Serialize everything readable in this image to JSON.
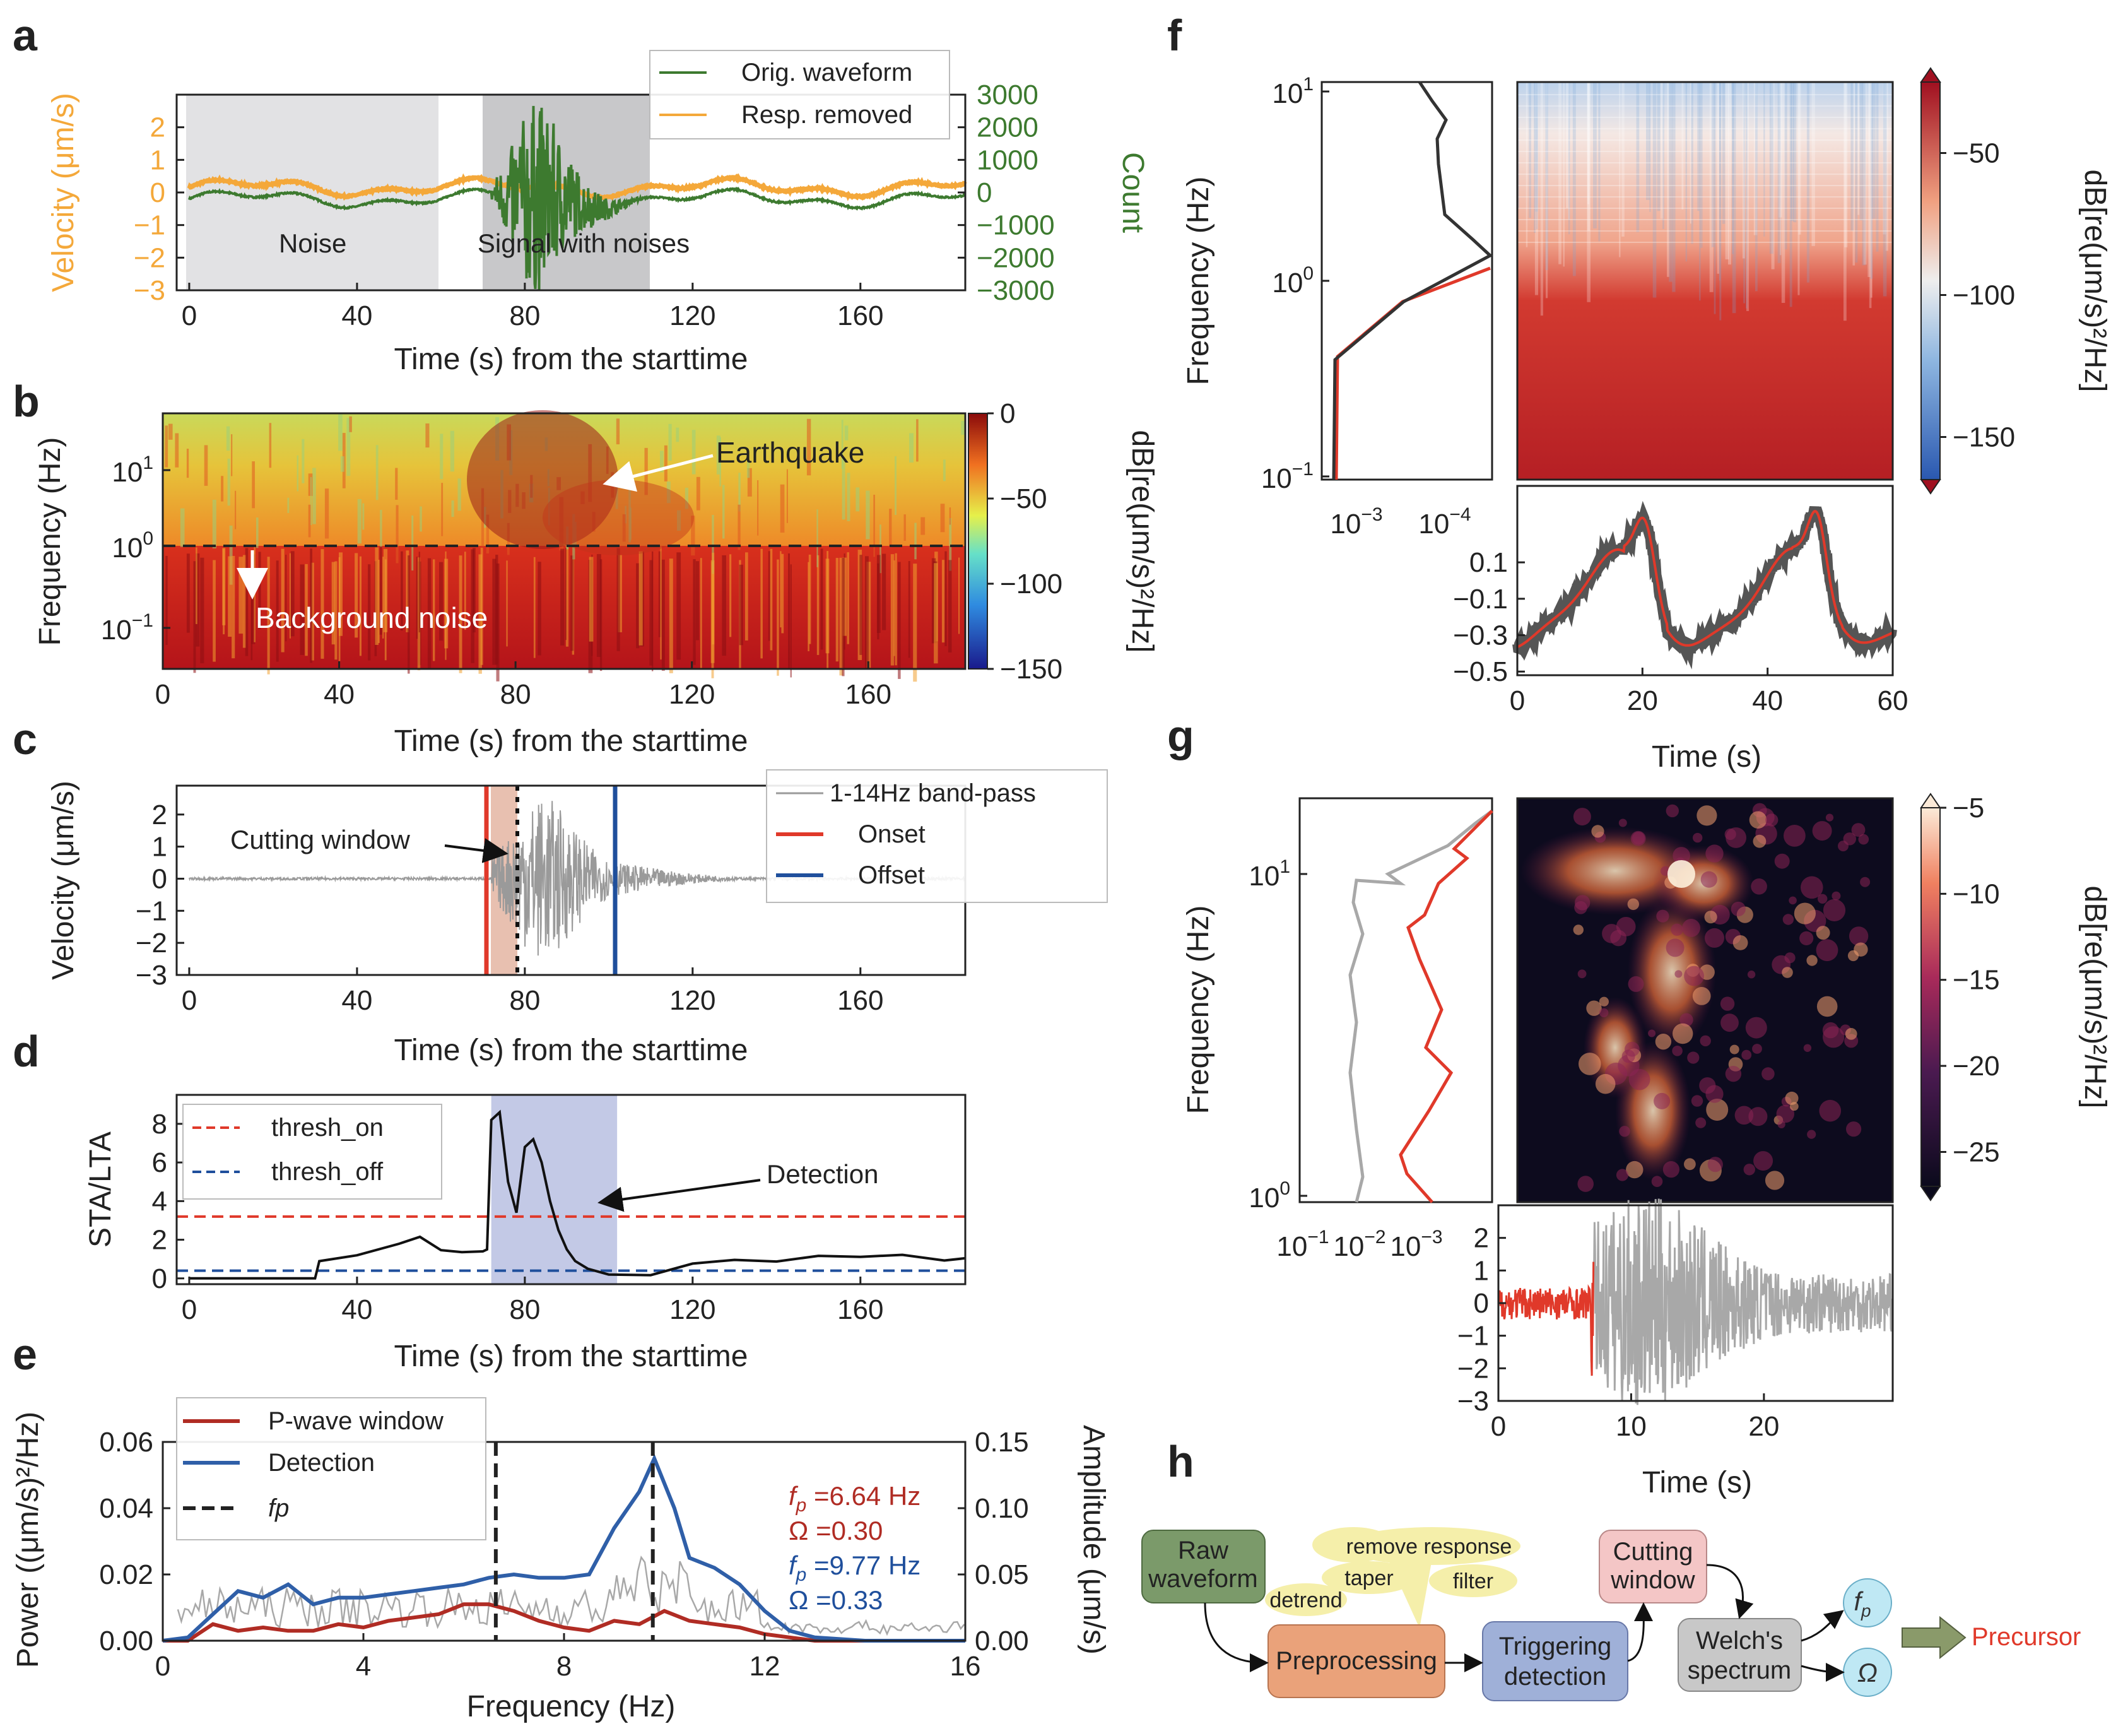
{
  "colors": {
    "orange": "#f4a83a",
    "green": "#3d7a2f",
    "red": "#e0392a",
    "blue": "#1f4f9c",
    "darkred": "#b02c24",
    "grey": "#9a9a9a",
    "dark": "#3a3a3a",
    "shade_blue": "#c3c9e6"
  },
  "chart_data": [
    {
      "panel": "a",
      "type": "line",
      "xlabel": "Time (s) from the starttime",
      "ylabel_left": "Velocity (μm/s)",
      "ylabel_right": "Count",
      "xlim": [
        -3,
        185
      ],
      "ylim_left": [
        -3,
        3
      ],
      "ylim_right": [
        -3000,
        3000
      ],
      "xticks": [
        "0",
        "40",
        "80",
        "120",
        "160"
      ],
      "yticks_left": [
        "2",
        "1",
        "0",
        "−1",
        "−2",
        "−3"
      ],
      "yticks_right": [
        "3000",
        "2000",
        "1000",
        "0",
        "−1000",
        "−2000",
        "−3000"
      ],
      "legend": [
        "Orig. waveform",
        "Resp. removed"
      ],
      "regions": [
        {
          "label": "Noise",
          "start": 0,
          "end": 60
        },
        {
          "label": "Signal with noises",
          "start": 70,
          "end": 110
        }
      ]
    },
    {
      "panel": "b",
      "type": "heatmap",
      "xlabel": "Time (s) from the starttime",
      "ylabel": "Frequency (Hz)",
      "xticks": [
        "0",
        "40",
        "80",
        "120",
        "160"
      ],
      "ytick_base": [
        "10",
        "10",
        "10"
      ],
      "ytick_exp": [
        "1",
        "0",
        "−1"
      ],
      "colorbar_label": "dB[re(μm/s)²/Hz]",
      "colorbar_ticks": [
        "0",
        "−50",
        "−100",
        "−150"
      ],
      "annotations": [
        "Earthquake",
        "Background noise"
      ],
      "divider_frequency_hz": 1
    },
    {
      "panel": "c",
      "type": "line",
      "xlabel": "Time (s) from the starttime",
      "ylabel": "Velocity (μm/s)",
      "xticks": [
        "0",
        "40",
        "80",
        "120",
        "160"
      ],
      "yticks": [
        "2",
        "1",
        "0",
        "−1",
        "−2",
        "−3"
      ],
      "legend": [
        "1-14Hz band-pass",
        "Onset",
        "Offset"
      ],
      "onset_s": 72,
      "offset_s": 102,
      "cut_end_s": 79,
      "annotation": "Cutting window"
    },
    {
      "panel": "d",
      "type": "line",
      "xlabel": "Time (s) from the starttime",
      "ylabel": "STA/LTA",
      "xticks": [
        "0",
        "40",
        "80",
        "120",
        "160"
      ],
      "yticks": [
        "8",
        "6",
        "4",
        "2",
        "0"
      ],
      "legend": [
        "thresh_on",
        "thresh_off"
      ],
      "thresh_on": 3.2,
      "thresh_off": 0.4,
      "detection": [
        72,
        102
      ],
      "annotation": "Detection",
      "x": [
        0,
        30,
        31,
        40,
        50,
        55,
        60,
        65,
        70,
        71,
        72,
        74,
        76,
        78,
        80,
        82,
        84,
        86,
        88,
        90,
        92,
        95,
        100,
        110,
        120,
        130,
        140,
        150,
        160,
        170,
        180,
        185
      ],
      "y": [
        0,
        0,
        1,
        1.3,
        1.8,
        2,
        1.6,
        1.5,
        1.4,
        1.5,
        8.2,
        8.6,
        5,
        3.4,
        6.8,
        7.2,
        6,
        4,
        2.5,
        1.5,
        0.9,
        0.5,
        0.2,
        0.2,
        0.8,
        0.9,
        0.8,
        1,
        1,
        1.1,
        0.9,
        1.2
      ]
    },
    {
      "panel": "e",
      "type": "line",
      "xlabel": "Frequency (Hz)",
      "ylabel_left": "Power ((μm/s)²/Hz)",
      "ylabel_right": "Amplitude (μm/s)",
      "xlim": [
        0,
        16
      ],
      "ylim_left": [
        0,
        0.06
      ],
      "ylim_right": [
        0,
        0.15
      ],
      "xticks": [
        "0",
        "4",
        "8",
        "12",
        "16"
      ],
      "yticks_left": [
        "0.06",
        "0.04",
        "0.02",
        "0.00"
      ],
      "yticks_right": [
        "0.15",
        "0.10",
        "0.05",
        "0.00"
      ],
      "legend": [
        "P-wave window",
        "Detection",
        "fp"
      ],
      "series": [
        {
          "name": "P-wave window",
          "x": [
            0,
            0.5,
            1,
            1.5,
            2,
            2.5,
            3,
            3.5,
            4,
            4.5,
            5,
            5.5,
            6,
            6.5,
            7,
            7.5,
            8,
            8.5,
            9,
            9.5,
            10,
            10.5,
            11,
            11.5,
            12,
            12.5,
            13,
            14,
            16
          ],
          "y": [
            0,
            0,
            0.005,
            0.003,
            0.004,
            0.003,
            0.003,
            0.005,
            0.004,
            0.006,
            0.007,
            0.008,
            0.011,
            0.011,
            0.009,
            0.006,
            0.004,
            0.003,
            0.006,
            0.005,
            0.009,
            0.006,
            0.005,
            0.004,
            0.002,
            0.001,
            0,
            0,
            0
          ]
        },
        {
          "name": "Detection",
          "x": [
            0,
            0.5,
            1,
            1.5,
            2,
            2.5,
            3,
            3.5,
            4,
            4.5,
            5,
            5.5,
            6,
            6.5,
            7,
            7.5,
            8,
            8.5,
            9,
            9.5,
            9.8,
            10.2,
            10.5,
            11,
            11.5,
            12,
            12.5,
            13,
            14,
            16
          ],
          "y": [
            0,
            0.001,
            0.008,
            0.015,
            0.013,
            0.017,
            0.011,
            0.013,
            0.013,
            0.014,
            0.015,
            0.016,
            0.017,
            0.019,
            0.02,
            0.019,
            0.019,
            0.02,
            0.034,
            0.045,
            0.055,
            0.04,
            0.025,
            0.022,
            0.017,
            0.009,
            0.003,
            0.001,
            0,
            0
          ]
        }
      ],
      "fp_lines": [
        6.64,
        9.77
      ],
      "labels": [
        {
          "text": "=6.64 Hz",
          "color": "darkred"
        },
        {
          "text": "Ω =0.30",
          "color": "darkred"
        },
        {
          "text": "=9.77 Hz",
          "color": "blue"
        },
        {
          "text": "Ω =0.33",
          "color": "blue"
        }
      ]
    },
    {
      "panel": "f",
      "type": "heatmap",
      "xlabel": "Time (s)",
      "ylabel": "Frequency (Hz)",
      "xticks": [
        "0",
        "20",
        "40",
        "60"
      ],
      "ytick_exp": [
        "1",
        "0",
        "−1"
      ],
      "spec_xticks": [
        "−3",
        "−4"
      ],
      "trace_yticks": [
        "0.1",
        "−0.1",
        "−0.3",
        "−0.5"
      ],
      "colorbar_label": "dB[re(μm/s)²/Hz]",
      "colorbar_ticks": [
        "−50",
        "−100",
        "−150"
      ]
    },
    {
      "panel": "g",
      "type": "heatmap",
      "xlabel": "Time (s)",
      "ylabel": "Frequency (Hz)",
      "xticks": [
        "0",
        "10",
        "20"
      ],
      "ytick_exp": [
        "1",
        "0"
      ],
      "spec_xticks": [
        "−1",
        "−2",
        "−3"
      ],
      "trace_yticks": [
        "2",
        "1",
        "0",
        "−1",
        "−2",
        "−3"
      ],
      "colorbar_label": "dB[re(μm/s)²/Hz]",
      "colorbar_ticks": [
        "−5",
        "−10",
        "−15",
        "−20",
        "−25"
      ]
    }
  ],
  "panels": [
    "a",
    "b",
    "c",
    "d",
    "e",
    "f",
    "g",
    "h"
  ],
  "flowchart": {
    "raw": [
      "Raw",
      "waveform"
    ],
    "pre": "Preprocessing",
    "trig": [
      "Triggering",
      "detection"
    ],
    "cut": [
      "Cutting",
      "window"
    ],
    "welch": [
      "Welch's",
      "spectrum"
    ],
    "precursor": "Precursor",
    "bubbles": [
      "remove response",
      "taper",
      "detrend",
      "filter"
    ],
    "omega": "Ω"
  }
}
